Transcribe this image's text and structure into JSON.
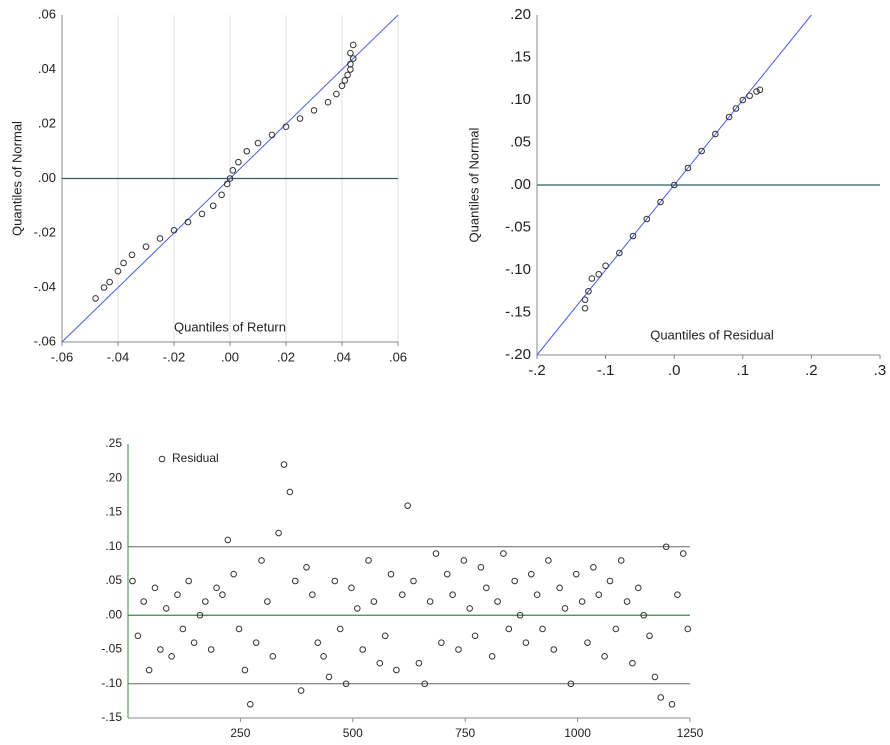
{
  "chart_data": [
    {
      "type": "scatter",
      "y_label": "Quantiles of Normal",
      "x_label": "Quantiles of Return",
      "xlim": [
        -0.06,
        0.06
      ],
      "ylim": [
        -0.06,
        0.06
      ],
      "xticks": [
        {
          "value": -0.06,
          "label": "-.06"
        },
        {
          "value": -0.04,
          "label": "-.04"
        },
        {
          "value": -0.02,
          "label": "-.02"
        },
        {
          "value": 0,
          "label": ".00"
        },
        {
          "value": 0.02,
          "label": ".02"
        },
        {
          "value": 0.04,
          "label": ".04"
        },
        {
          "value": 0.06,
          "label": ".06"
        }
      ],
      "yticks": [
        {
          "value": 0.06,
          "label": ".06"
        },
        {
          "value": 0.04,
          "label": ".04"
        },
        {
          "value": 0.02,
          "label": ".02"
        },
        {
          "value": 0,
          "label": ".00"
        },
        {
          "value": -0.02,
          "label": "-.02"
        },
        {
          "value": -0.04,
          "label": "-.04"
        },
        {
          "value": -0.06,
          "label": "-.06"
        }
      ],
      "grid": "x",
      "reference_line": true,
      "zero_line": true,
      "color": "#333333",
      "x": [
        -0.048,
        -0.045,
        -0.043,
        -0.04,
        -0.038,
        -0.035,
        -0.03,
        -0.025,
        -0.02,
        -0.015,
        -0.01,
        -0.006,
        -0.003,
        -0.001,
        0.0,
        0.001,
        0.003,
        0.006,
        0.01,
        0.015,
        0.02,
        0.025,
        0.03,
        0.035,
        0.038,
        0.04,
        0.041,
        0.042,
        0.043,
        0.043,
        0.044,
        0.043,
        0.044
      ],
      "values": [
        -0.044,
        -0.04,
        -0.038,
        -0.034,
        -0.031,
        -0.028,
        -0.025,
        -0.022,
        -0.019,
        -0.016,
        -0.013,
        -0.01,
        -0.006,
        -0.002,
        0.0,
        0.003,
        0.006,
        0.01,
        0.013,
        0.016,
        0.019,
        0.022,
        0.025,
        0.028,
        0.031,
        0.034,
        0.036,
        0.038,
        0.04,
        0.042,
        0.044,
        0.046,
        0.049
      ]
    },
    {
      "type": "scatter",
      "y_label": "Quantiles of Normal",
      "x_label": "Quantiles of Residual",
      "xlim": [
        -0.2,
        0.3
      ],
      "ylim": [
        -0.2,
        0.2
      ],
      "xticks": [
        {
          "value": -0.2,
          "label": "-.2"
        },
        {
          "value": -0.1,
          "label": "-.1"
        },
        {
          "value": 0,
          "label": ".0"
        },
        {
          "value": 0.1,
          "label": ".1"
        },
        {
          "value": 0.2,
          "label": ".2"
        },
        {
          "value": 0.3,
          "label": ".3"
        }
      ],
      "yticks": [
        {
          "value": 0.2,
          "label": ".20"
        },
        {
          "value": 0.15,
          "label": ".15"
        },
        {
          "value": 0.1,
          "label": ".10"
        },
        {
          "value": 0.05,
          "label": ".05"
        },
        {
          "value": 0,
          "label": ".00"
        },
        {
          "value": -0.05,
          "label": "-.05"
        },
        {
          "value": -0.1,
          "label": "-.10"
        },
        {
          "value": -0.15,
          "label": "-.15"
        },
        {
          "value": -0.2,
          "label": "-.20"
        }
      ],
      "grid": "none",
      "reference_line": true,
      "zero_line": true,
      "color": "#333333",
      "x": [
        -0.13,
        -0.13,
        -0.125,
        -0.12,
        -0.11,
        -0.1,
        -0.08,
        -0.06,
        -0.04,
        -0.02,
        0,
        0.02,
        0.04,
        0.06,
        0.08,
        0.09,
        0.1,
        0.11,
        0.12,
        0.125
      ],
      "values": [
        -0.145,
        -0.135,
        -0.125,
        -0.11,
        -0.105,
        -0.095,
        -0.08,
        -0.06,
        -0.04,
        -0.02,
        0,
        0.02,
        0.04,
        0.06,
        0.08,
        0.09,
        0.1,
        0.105,
        0.11,
        0.112
      ]
    },
    {
      "type": "scatter",
      "xlim": [
        0,
        1250
      ],
      "ylim": [
        -0.15,
        0.25
      ],
      "xticks": [
        250,
        500,
        750,
        1000,
        1250
      ],
      "yticks": [
        {
          "value": 0.25,
          "label": ".25"
        },
        {
          "value": 0.2,
          "label": ".20"
        },
        {
          "value": 0.15,
          "label": ".15"
        },
        {
          "value": 0.1,
          "label": ".10"
        },
        {
          "value": 0.05,
          "label": ".05"
        },
        {
          "value": 0,
          "label": ".00"
        },
        {
          "value": -0.05,
          "label": "-.05"
        },
        {
          "value": -0.1,
          "label": "-.10"
        },
        {
          "value": -0.15,
          "label": "-.15"
        }
      ],
      "grid": "y-major",
      "reference_line": false,
      "zero_line": true,
      "legend": "top-left",
      "series": [
        {
          "name": "Residual",
          "color": "#333333",
          "x": [
            10,
            22,
            35,
            47,
            60,
            72,
            85,
            97,
            110,
            122,
            135,
            147,
            160,
            172,
            185,
            197,
            210,
            222,
            235,
            247,
            260,
            272,
            285,
            297,
            310,
            322,
            335,
            347,
            360,
            372,
            385,
            397,
            410,
            422,
            435,
            447,
            460,
            472,
            485,
            497,
            510,
            522,
            535,
            547,
            560,
            572,
            585,
            597,
            610,
            622,
            635,
            647,
            660,
            672,
            685,
            697,
            710,
            722,
            735,
            747,
            760,
            772,
            785,
            797,
            810,
            822,
            835,
            847,
            860,
            872,
            885,
            897,
            910,
            922,
            935,
            947,
            960,
            972,
            985,
            997,
            1010,
            1022,
            1035,
            1047,
            1060,
            1072,
            1085,
            1097,
            1110,
            1122,
            1135,
            1147,
            1160,
            1172,
            1185,
            1197,
            1210,
            1222,
            1235,
            1245
          ],
          "values": [
            0.05,
            -0.03,
            0.02,
            -0.08,
            0.04,
            -0.05,
            0.01,
            -0.06,
            0.03,
            -0.02,
            0.05,
            -0.04,
            0.0,
            0.02,
            -0.05,
            0.04,
            0.03,
            0.11,
            0.06,
            -0.02,
            -0.08,
            -0.13,
            -0.04,
            0.08,
            0.02,
            -0.06,
            0.12,
            0.22,
            0.18,
            0.05,
            -0.11,
            0.07,
            0.03,
            -0.04,
            -0.06,
            -0.09,
            0.05,
            -0.02,
            -0.1,
            0.04,
            0.01,
            -0.05,
            0.08,
            0.02,
            -0.07,
            -0.03,
            0.06,
            -0.08,
            0.03,
            0.16,
            0.05,
            -0.07,
            -0.1,
            0.02,
            0.09,
            -0.04,
            0.06,
            0.03,
            -0.05,
            0.08,
            0.01,
            -0.03,
            0.07,
            0.04,
            -0.06,
            0.02,
            0.09,
            -0.02,
            0.05,
            0.0,
            -0.04,
            0.06,
            0.03,
            -0.02,
            0.08,
            -0.05,
            0.04,
            0.01,
            -0.1,
            0.06,
            0.02,
            -0.04,
            0.07,
            0.03,
            -0.06,
            0.05,
            -0.02,
            0.08,
            0.02,
            -0.07,
            0.04,
            0.0,
            -0.03,
            -0.09,
            -0.12,
            0.1,
            -0.13,
            0.03,
            0.09,
            -0.02
          ]
        }
      ]
    }
  ]
}
